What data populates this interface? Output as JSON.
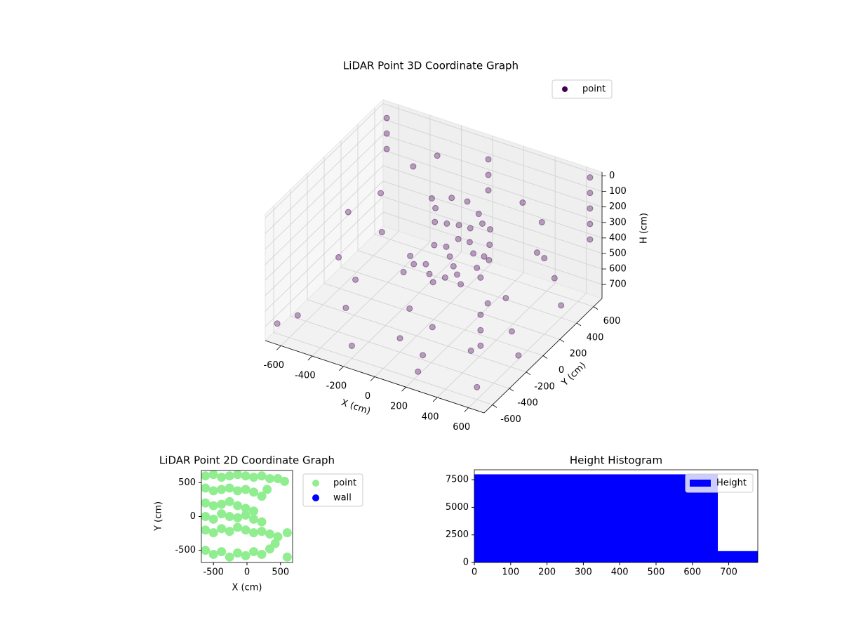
{
  "chart_data": [
    {
      "type": "scatter3d",
      "title": "LiDAR Point 3D Coordinate Graph",
      "xlabel": "X (cm)",
      "ylabel": "Y (cm)",
      "zlabel": "H (cm)",
      "xlim": [
        -700,
        700
      ],
      "ylim": [
        -700,
        700
      ],
      "zlim": [
        790,
        -25
      ],
      "xticks": [
        -600,
        -400,
        -200,
        0,
        200,
        400,
        600
      ],
      "yticks": [
        -600,
        -400,
        -200,
        0,
        200,
        400,
        600
      ],
      "zticks": [
        0,
        100,
        200,
        300,
        400,
        500,
        600,
        700
      ],
      "grid": true,
      "legend": "upper right",
      "series": [
        {
          "name": "point",
          "color": "#440154",
          "x": [
            -100,
            -50,
            0,
            50,
            100,
            150,
            200,
            -150,
            -200,
            0,
            50,
            100,
            -50,
            200,
            250,
            300,
            -100,
            0,
            100,
            150,
            -50,
            0,
            50,
            100,
            150,
            200,
            -100,
            -150,
            250,
            300,
            -400,
            -300,
            -500,
            -600,
            -500,
            300,
            450,
            500,
            600,
            400,
            -600,
            -400,
            -200,
            0,
            200,
            400,
            600,
            -500,
            -300,
            100,
            300,
            500,
            -600,
            0,
            600,
            -100,
            250,
            -650,
            650,
            450,
            650,
            650,
            650,
            650,
            650,
            -650,
            -650,
            -650,
            0,
            0,
            0,
            650,
            650,
            650
          ],
          "y": [
            200,
            250,
            300,
            200,
            250,
            150,
            100,
            300,
            350,
            150,
            100,
            50,
            100,
            300,
            200,
            100,
            400,
            400,
            350,
            300,
            0,
            -50,
            -100,
            -50,
            0,
            -50,
            -50,
            0,
            50,
            0,
            500,
            600,
            300,
            100,
            -200,
            500,
            450,
            300,
            200,
            -100,
            -500,
            -300,
            -600,
            -400,
            -500,
            -300,
            -600,
            0,
            200,
            -200,
            300,
            0,
            500,
            600,
            400,
            -100,
            -650,
            -650,
            -200,
            600,
            650,
            650,
            650,
            650,
            650,
            650,
            650,
            650,
            650,
            650,
            650,
            -650,
            -650,
            -650
          ],
          "z": [
            300,
            320,
            340,
            360,
            300,
            320,
            350,
            280,
            260,
            400,
            420,
            440,
            380,
            300,
            330,
            360,
            250,
            240,
            260,
            280,
            450,
            470,
            480,
            460,
            450,
            470,
            440,
            430,
            400,
            420,
            200,
            150,
            300,
            350,
            450,
            200,
            250,
            350,
            300,
            500,
            700,
            690,
            710,
            700,
            690,
            700,
            710,
            700,
            690,
            700,
            710,
            700,
            690,
            700,
            710,
            700,
            700,
            690,
            700,
            690,
            0,
            100,
            200,
            300,
            400,
            50,
            150,
            250,
            100,
            200,
            300,
            200,
            300,
            400
          ]
        }
      ]
    },
    {
      "type": "scatter",
      "title": "LiDAR Point 2D Coordinate Graph",
      "xlabel": "X (cm)",
      "ylabel": "Y (cm)",
      "xlim": [
        -680,
        680
      ],
      "ylim": [
        -680,
        680
      ],
      "xticks": [
        -500,
        0,
        500
      ],
      "yticks": [
        -500,
        0,
        500
      ],
      "legend": "outside right",
      "series": [
        {
          "name": "point",
          "color": "#90ee90",
          "x": [
            -620,
            -500,
            -380,
            -260,
            -140,
            -20,
            100,
            220,
            340,
            460,
            560,
            -620,
            -500,
            -380,
            -260,
            -140,
            -20,
            100,
            220,
            -620,
            -500,
            -380,
            -260,
            -140,
            -20,
            100,
            -620,
            -500,
            -380,
            -260,
            -140,
            -20,
            100,
            220,
            -620,
            -500,
            -380,
            -260,
            -140,
            -20,
            100,
            220,
            340,
            460,
            -620,
            -500,
            -380,
            -260,
            -140,
            -20,
            100,
            220,
            340,
            600,
            420,
            600,
            300
          ],
          "y": [
            600,
            620,
            580,
            600,
            620,
            600,
            580,
            600,
            560,
            560,
            520,
            420,
            380,
            400,
            420,
            380,
            400,
            360,
            300,
            200,
            160,
            180,
            220,
            160,
            120,
            80,
            0,
            -40,
            40,
            0,
            -20,
            20,
            -40,
            -80,
            -200,
            -240,
            -180,
            -220,
            -160,
            -200,
            -240,
            -220,
            -260,
            -300,
            -500,
            -560,
            -520,
            -600,
            -540,
            -580,
            -520,
            -560,
            -480,
            -600,
            -400,
            -240,
            400
          ]
        },
        {
          "name": "wall",
          "color": "#0000ff",
          "x": [],
          "y": []
        }
      ]
    },
    {
      "type": "histogram",
      "title": "Height Histogram",
      "bins": [
        0,
        670,
        780
      ],
      "xlim": [
        0,
        780
      ],
      "ylim": [
        0,
        8400
      ],
      "xticks": [
        0,
        100,
        200,
        300,
        400,
        500,
        600,
        700
      ],
      "yticks": [
        0,
        2500,
        5000,
        7500
      ],
      "legend": "upper right",
      "series": [
        {
          "name": "Height",
          "color": "#0000ff",
          "values": [
            7990,
            1030
          ]
        }
      ]
    }
  ]
}
